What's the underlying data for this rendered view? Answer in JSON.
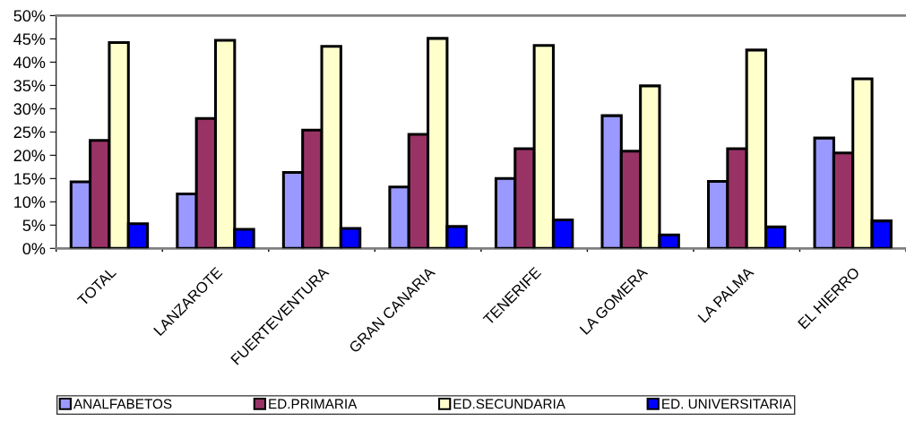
{
  "chart_data": {
    "type": "bar",
    "categories": [
      "TOTAL",
      "LANZAROTE",
      "FUERTEVENTURA",
      "GRAN CANARIA",
      "TENERIFE",
      "LA GOMERA",
      "LA PALMA",
      "EL HIERRO"
    ],
    "series": [
      {
        "name": "ANALFABETOS",
        "color": "#9999ff",
        "values": [
          14.3,
          11.7,
          16.3,
          13.2,
          15.0,
          28.5,
          14.4,
          23.7
        ]
      },
      {
        "name": "ED.PRIMARIA",
        "color": "#993366",
        "values": [
          23.2,
          27.9,
          25.4,
          24.5,
          21.4,
          20.9,
          21.4,
          20.5
        ]
      },
      {
        "name": "ED.SECUNDARIA",
        "color": "#ffffcc",
        "values": [
          44.2,
          44.7,
          43.4,
          45.1,
          43.6,
          34.9,
          42.6,
          36.4
        ]
      },
      {
        "name": "ED. UNIVERSITARIA",
        "color": "#0000ff",
        "values": [
          5.3,
          4.1,
          4.3,
          4.7,
          6.1,
          2.9,
          4.6,
          5.9
        ]
      }
    ],
    "ylim": [
      0,
      50
    ],
    "yticks": [
      {
        "value": 0,
        "label": "0%"
      },
      {
        "value": 5,
        "label": "5%"
      },
      {
        "value": 10,
        "label": "10%"
      },
      {
        "value": 15,
        "label": "15%"
      },
      {
        "value": 20,
        "label": "20%"
      },
      {
        "value": 25,
        "label": "25%"
      },
      {
        "value": 30,
        "label": "30%"
      },
      {
        "value": 35,
        "label": "35%"
      },
      {
        "value": 40,
        "label": "40%"
      },
      {
        "value": 45,
        "label": "45%"
      },
      {
        "value": 50,
        "label": "50%"
      }
    ],
    "grid": false,
    "legend": "bottom"
  }
}
